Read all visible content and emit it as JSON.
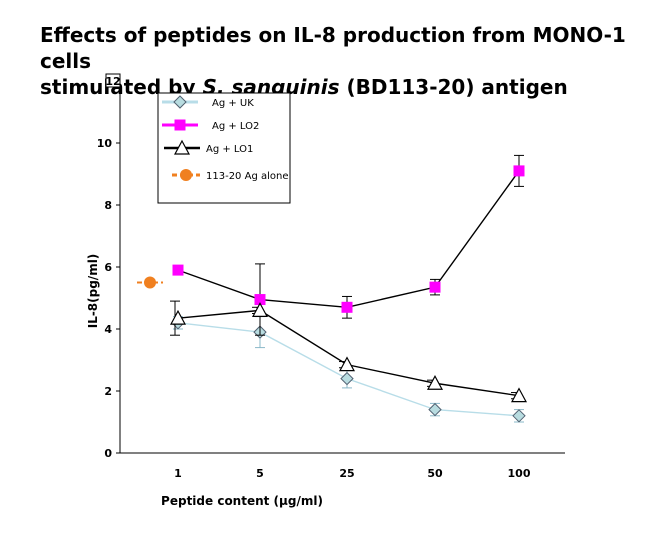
{
  "title": {
    "line1": "Effects of peptides on IL-8 production from MONO-1 cells",
    "line2_pre": "stimulated by ",
    "line2_italic": "S. sanguinis",
    "line2_post": " (BD113-20) antigen"
  },
  "chart_data": {
    "type": "line",
    "title": "Effects of peptides on IL-8 production from MONO-1 cells stimulated by S. sanguinis (BD113-20) antigen",
    "xlabel": "Peptide content (μg/ml)",
    "ylabel": "IL-8(pg/ml)",
    "categories": [
      "1",
      "5",
      "25",
      "50",
      "100"
    ],
    "ylim": [
      0,
      12
    ],
    "yticks": [
      "0",
      "2",
      "4",
      "6",
      "8",
      "10",
      "12"
    ],
    "grid": false,
    "legend_position": "top-left",
    "series": [
      {
        "name": "Ag + UK",
        "marker": "diamond",
        "color": "#a8d8e8",
        "line_color": "#b8dde8",
        "values": [
          4.2,
          3.9,
          2.4,
          1.4,
          1.2
        ],
        "errors": [
          0.2,
          0.5,
          0.3,
          0.2,
          0.2
        ]
      },
      {
        "name": "Ag + LO2",
        "marker": "square",
        "color": "#ff00ff",
        "line_color": "#000000",
        "values": [
          5.9,
          4.95,
          4.7,
          5.35,
          9.1
        ],
        "errors": [
          0.1,
          1.15,
          0.35,
          0.25,
          0.5
        ]
      },
      {
        "name": "Ag + LO1",
        "marker": "triangle",
        "color": "#ffffff",
        "line_color": "#000000",
        "values": [
          4.35,
          4.6,
          2.85,
          2.25,
          1.85
        ],
        "errors": [
          0.55,
          0.1,
          0.1,
          0.1,
          0.1
        ]
      },
      {
        "name": "113-20 Ag alone",
        "marker": "circle",
        "color": "#f08020",
        "line_color": "#f08020",
        "value": 5.5
      }
    ]
  }
}
